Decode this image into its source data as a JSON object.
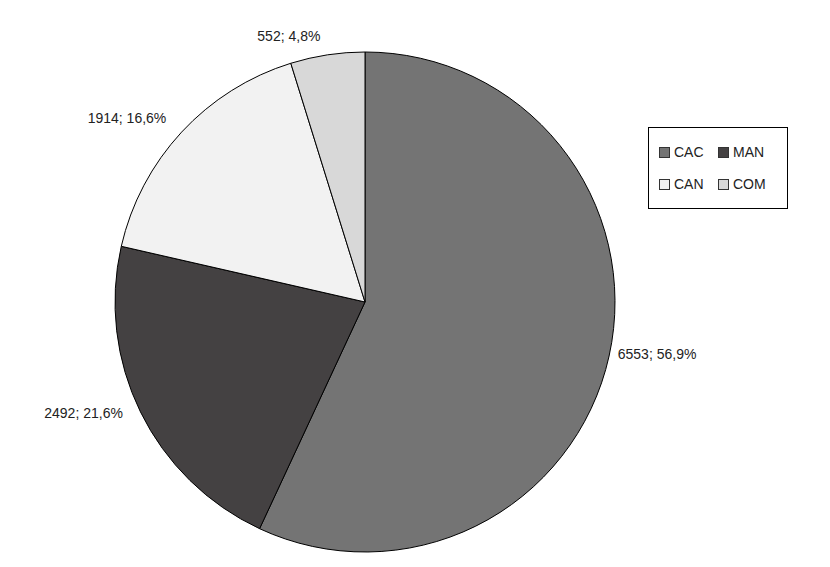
{
  "chart_data": {
    "type": "pie",
    "categories": [
      "CAC",
      "MAN",
      "CAN",
      "COM"
    ],
    "values": [
      6553,
      2492,
      1914,
      552
    ],
    "value_labels": [
      "6553; 56,9%",
      "2492; 21,6%",
      "1914; 16,6%",
      "552; 4,8%"
    ],
    "colors": [
      "#747474",
      "#444142",
      "#f2f2f2",
      "#d8d8d8"
    ],
    "legend": "right",
    "data_labels": true
  }
}
